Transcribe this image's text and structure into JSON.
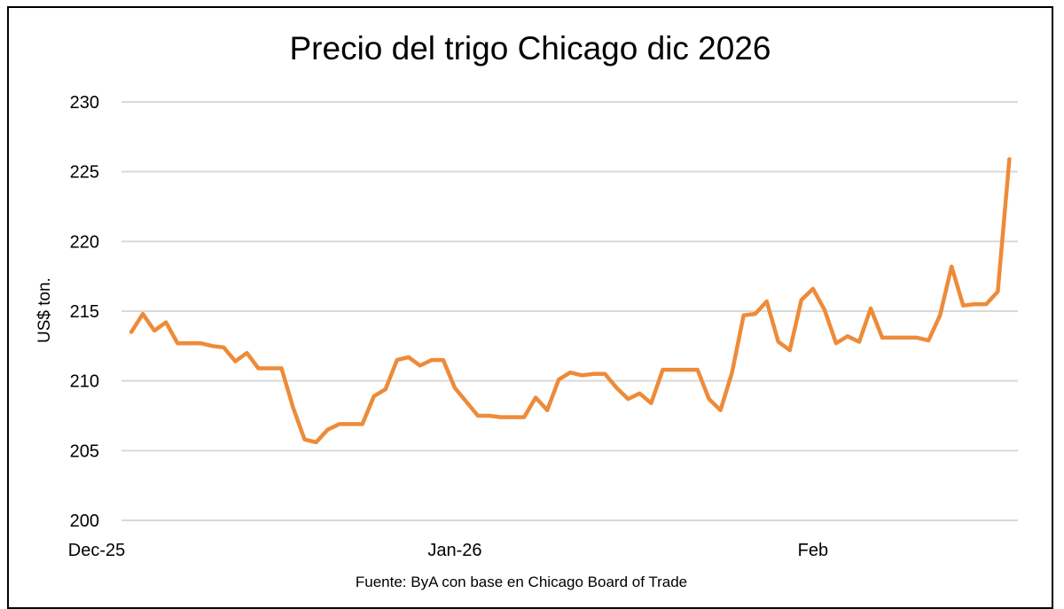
{
  "chart_data": {
    "type": "line",
    "title": "Precio del trigo Chicago dic 2026",
    "ylabel": "US$ ton.",
    "xlabel": "",
    "source": "Fuente: ByA con base en Chicago Board of Trade",
    "ylim": [
      200,
      230
    ],
    "yticks": [
      200,
      205,
      210,
      215,
      220,
      225,
      230
    ],
    "xticks": [
      {
        "date": "2025-12-01",
        "label": "Dec-25"
      },
      {
        "date": "2026-01-01",
        "label": "Jan-26"
      },
      {
        "date": "2026-02-01",
        "label": "Feb"
      }
    ],
    "xlim": [
      "2025-12-01",
      "2026-02-19"
    ],
    "grid": "horizontal",
    "line_color": "#ED8B3A",
    "x": [
      "2025-12-04",
      "2025-12-05",
      "2025-12-06",
      "2025-12-07",
      "2025-12-08",
      "2025-12-09",
      "2025-12-10",
      "2025-12-11",
      "2025-12-12",
      "2025-12-13",
      "2025-12-14",
      "2025-12-15",
      "2025-12-16",
      "2025-12-17",
      "2025-12-18",
      "2025-12-19",
      "2025-12-20",
      "2025-12-21",
      "2025-12-22",
      "2025-12-23",
      "2025-12-24",
      "2025-12-25",
      "2025-12-26",
      "2025-12-27",
      "2025-12-28",
      "2025-12-29",
      "2025-12-30",
      "2025-12-31",
      "2026-01-01",
      "2026-01-02",
      "2026-01-03",
      "2026-01-04",
      "2026-01-05",
      "2026-01-06",
      "2026-01-07",
      "2026-01-08",
      "2026-01-09",
      "2026-01-10",
      "2026-01-11",
      "2026-01-12",
      "2026-01-13",
      "2026-01-14",
      "2026-01-15",
      "2026-01-16",
      "2026-01-17",
      "2026-01-18",
      "2026-01-19",
      "2026-01-20",
      "2026-01-21",
      "2026-01-22",
      "2026-01-23",
      "2026-01-24",
      "2026-01-25",
      "2026-01-26",
      "2026-01-27",
      "2026-01-28",
      "2026-01-29",
      "2026-01-30",
      "2026-01-31",
      "2026-02-01",
      "2026-02-02",
      "2026-02-03",
      "2026-02-04",
      "2026-02-05",
      "2026-02-06",
      "2026-02-07",
      "2026-02-08",
      "2026-02-09",
      "2026-02-10",
      "2026-02-11",
      "2026-02-12",
      "2026-02-13",
      "2026-02-14",
      "2026-02-15",
      "2026-02-16",
      "2026-02-17",
      "2026-02-18"
    ],
    "values": [
      213.5,
      214.8,
      213.6,
      214.2,
      212.7,
      212.7,
      212.7,
      212.5,
      212.4,
      211.4,
      212.0,
      210.9,
      210.9,
      210.9,
      208.1,
      205.8,
      205.6,
      206.5,
      206.9,
      206.9,
      206.9,
      208.9,
      209.4,
      211.5,
      211.7,
      211.1,
      211.5,
      211.5,
      209.5,
      208.5,
      207.5,
      207.5,
      207.4,
      207.4,
      207.4,
      208.8,
      207.9,
      210.1,
      210.6,
      210.4,
      210.5,
      210.5,
      209.5,
      208.7,
      209.1,
      208.4,
      210.8,
      210.8,
      210.8,
      210.8,
      208.7,
      207.9,
      210.6,
      214.7,
      214.8,
      215.7,
      212.8,
      212.2,
      215.8,
      216.6,
      215.1,
      212.7,
      213.2,
      212.8,
      215.2,
      213.1,
      213.1,
      213.1,
      213.1,
      212.9,
      214.7,
      218.2,
      215.4,
      215.5,
      215.5,
      216.4,
      225.9
    ]
  }
}
